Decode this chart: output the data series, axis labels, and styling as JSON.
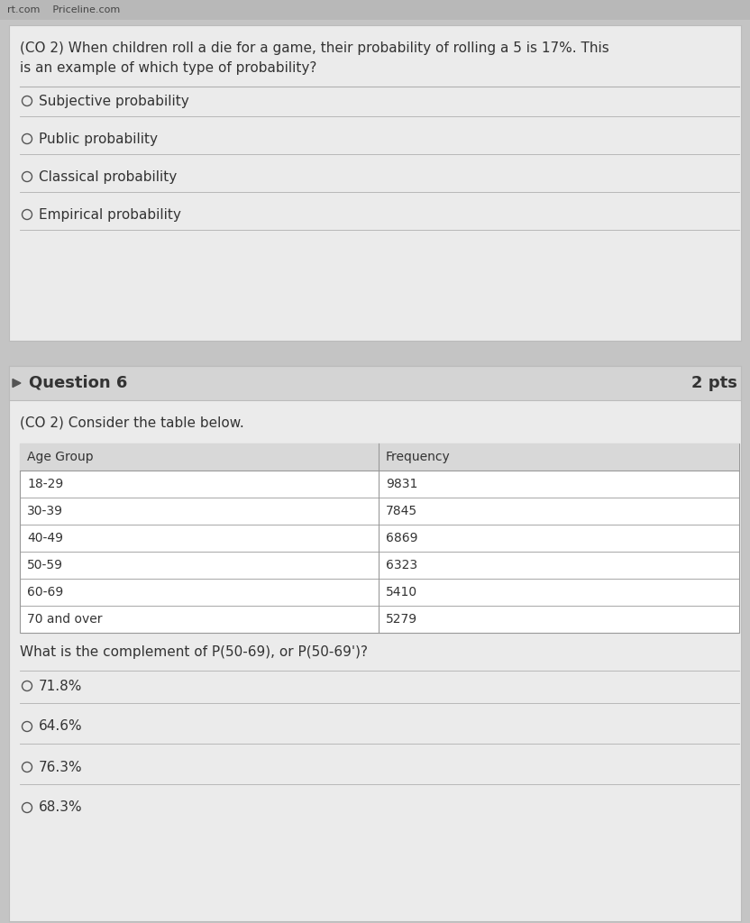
{
  "bg_color": "#c4c4c4",
  "top_bar_color": "#b8b8b8",
  "top_bar_text": "rt.com    Priceline.com",
  "q5_box_bg": "#ebebeb",
  "q5_question_line1": "(CO 2) When children roll a die for a game, their probability of rolling a 5 is 17%. This",
  "q5_question_line2": "is an example of which type of probability?",
  "q5_options": [
    "Subjective probability",
    "Public probability",
    "Classical probability",
    "Empirical probability"
  ],
  "q6_header_bg": "#d4d4d4",
  "q6_header_text": "Question 6",
  "q6_pts_text": "2 pts",
  "q6_box_bg": "#ebebeb",
  "q6_intro": "(CO 2) Consider the table below.",
  "table_headers": [
    "Age Group",
    "Frequency"
  ],
  "table_rows": [
    [
      "18-29",
      "9831"
    ],
    [
      "30-39",
      "7845"
    ],
    [
      "40-49",
      "6869"
    ],
    [
      "50-59",
      "6323"
    ],
    [
      "60-69",
      "5410"
    ],
    [
      "70 and over",
      "5279"
    ]
  ],
  "q6_question": "What is the complement of P(50-69), or P(50-69')?",
  "q6_options": [
    "71.8%",
    "64.6%",
    "76.3%",
    "68.3%"
  ],
  "font_color": "#333333",
  "option_font_size": 11,
  "question_font_size": 11,
  "header_font_size": 13,
  "table_header_bg": "#d8d8d8",
  "divider_color": "#b0b0b0",
  "border_color": "#bbbbbb",
  "table_border_color": "#999999"
}
